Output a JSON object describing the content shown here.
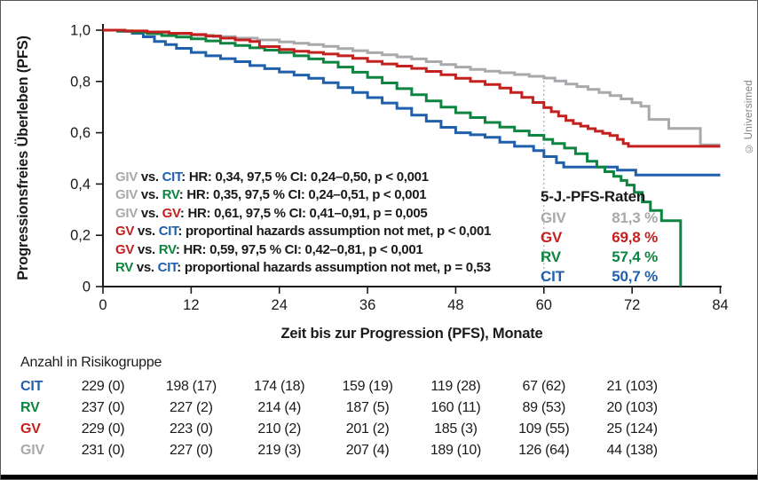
{
  "watermark": "© Universimed",
  "chart_data": {
    "type": "line",
    "subtype": "kaplan-meier-step",
    "xlabel": "Zeit bis zur Progression (PFS), Monate",
    "ylabel": "Progressionsfreies Überleben (PFS)",
    "xlim": [
      0,
      84
    ],
    "ylim": [
      0,
      1.0
    ],
    "grid": false,
    "x_ticks": [
      0,
      12,
      24,
      36,
      48,
      60,
      72,
      84
    ],
    "y_ticks": [
      {
        "v": 1.0,
        "label": "1,0"
      },
      {
        "v": 0.8,
        "label": "0,8"
      },
      {
        "v": 0.6,
        "label": "0,6"
      },
      {
        "v": 0.4,
        "label": "0,4"
      },
      {
        "v": 0.2,
        "label": "0,2"
      },
      {
        "v": 0.0,
        "label": "0"
      }
    ],
    "ref_line_x": 60,
    "colors": {
      "GIV": "#a7a9ac",
      "GV": "#c4201f",
      "RV": "#0d8540",
      "CIT": "#1f5fac",
      "text": "#1a1a1a",
      "axis": "#1a1a1a",
      "ref_line": "#999999"
    },
    "series": [
      {
        "name": "GIV",
        "points": [
          [
            0,
            1
          ],
          [
            3,
            0.995
          ],
          [
            6,
            0.99
          ],
          [
            9,
            0.985
          ],
          [
            12,
            0.98
          ],
          [
            15,
            0.975
          ],
          [
            18,
            0.969
          ],
          [
            21,
            0.962
          ],
          [
            24,
            0.954
          ],
          [
            26,
            0.949
          ],
          [
            28,
            0.944
          ],
          [
            30,
            0.937
          ],
          [
            32,
            0.928
          ],
          [
            34,
            0.92
          ],
          [
            36,
            0.912
          ],
          [
            38,
            0.904
          ],
          [
            40,
            0.896
          ],
          [
            42,
            0.888
          ],
          [
            44,
            0.877
          ],
          [
            46,
            0.866
          ],
          [
            48,
            0.856
          ],
          [
            50,
            0.847
          ],
          [
            52,
            0.84
          ],
          [
            54,
            0.834
          ],
          [
            56,
            0.827
          ],
          [
            58,
            0.82
          ],
          [
            60,
            0.813
          ],
          [
            61.5,
            0.802
          ],
          [
            63,
            0.79
          ],
          [
            64.5,
            0.78
          ],
          [
            66,
            0.769
          ],
          [
            67.5,
            0.757
          ],
          [
            69,
            0.745
          ],
          [
            70.5,
            0.732
          ],
          [
            72,
            0.717
          ],
          [
            73.2,
            0.703
          ],
          [
            74.3,
            0.652
          ],
          [
            77,
            0.617
          ],
          [
            81.3,
            0.553
          ],
          [
            84,
            0.553
          ]
        ]
      },
      {
        "name": "CIT",
        "points": [
          [
            0,
            1
          ],
          [
            2,
            0.996
          ],
          [
            4,
            0.988
          ],
          [
            5.5,
            0.974
          ],
          [
            7,
            0.956
          ],
          [
            8.5,
            0.944
          ],
          [
            10,
            0.929
          ],
          [
            12,
            0.913
          ],
          [
            14,
            0.9
          ],
          [
            16,
            0.889
          ],
          [
            18,
            0.877
          ],
          [
            20,
            0.862
          ],
          [
            22,
            0.85
          ],
          [
            24,
            0.837
          ],
          [
            26,
            0.825
          ],
          [
            28,
            0.812
          ],
          [
            30,
            0.795
          ],
          [
            32,
            0.776
          ],
          [
            34,
            0.757
          ],
          [
            36,
            0.737
          ],
          [
            38,
            0.716
          ],
          [
            40,
            0.695
          ],
          [
            42,
            0.669
          ],
          [
            44,
            0.645
          ],
          [
            46,
            0.621
          ],
          [
            48,
            0.6
          ],
          [
            50,
            0.592
          ],
          [
            52,
            0.582
          ],
          [
            54,
            0.563
          ],
          [
            56,
            0.547
          ],
          [
            58.6,
            0.53
          ],
          [
            60,
            0.507
          ],
          [
            61.7,
            0.483
          ],
          [
            62.7,
            0.466
          ],
          [
            70,
            0.454
          ],
          [
            72.5,
            0.435
          ],
          [
            84,
            0.435
          ]
        ]
      },
      {
        "name": "RV",
        "points": [
          [
            0,
            1
          ],
          [
            2,
            0.997
          ],
          [
            4,
            0.992
          ],
          [
            6,
            0.986
          ],
          [
            8,
            0.979
          ],
          [
            10,
            0.973
          ],
          [
            12,
            0.966
          ],
          [
            14,
            0.958
          ],
          [
            16,
            0.949
          ],
          [
            18,
            0.94
          ],
          [
            20,
            0.931
          ],
          [
            22,
            0.922
          ],
          [
            24,
            0.913
          ],
          [
            26,
            0.9
          ],
          [
            28,
            0.888
          ],
          [
            30,
            0.875
          ],
          [
            32,
            0.856
          ],
          [
            34,
            0.836
          ],
          [
            36,
            0.816
          ],
          [
            38,
            0.794
          ],
          [
            40,
            0.772
          ],
          [
            42,
            0.748
          ],
          [
            44,
            0.724
          ],
          [
            46,
            0.7
          ],
          [
            48,
            0.678
          ],
          [
            50,
            0.659
          ],
          [
            52,
            0.64
          ],
          [
            54,
            0.622
          ],
          [
            56,
            0.607
          ],
          [
            58,
            0.59
          ],
          [
            60,
            0.574
          ],
          [
            61.2,
            0.558
          ],
          [
            62.8,
            0.54
          ],
          [
            64.3,
            0.518
          ],
          [
            65.9,
            0.489
          ],
          [
            67.2,
            0.466
          ],
          [
            68.3,
            0.448
          ],
          [
            69.5,
            0.43
          ],
          [
            70.5,
            0.414
          ],
          [
            71.3,
            0.396
          ],
          [
            72.3,
            0.367
          ],
          [
            73.4,
            0.33
          ],
          [
            74.5,
            0.297
          ],
          [
            76,
            0.257
          ],
          [
            78.6,
            0
          ]
        ]
      },
      {
        "name": "GV",
        "points": [
          [
            0,
            1
          ],
          [
            3,
            0.997
          ],
          [
            6,
            0.993
          ],
          [
            9,
            0.988
          ],
          [
            12,
            0.983
          ],
          [
            14,
            0.977
          ],
          [
            16,
            0.969
          ],
          [
            18,
            0.962
          ],
          [
            20,
            0.956
          ],
          [
            21.3,
            0.936
          ],
          [
            24,
            0.925
          ],
          [
            26,
            0.918
          ],
          [
            28,
            0.913
          ],
          [
            30,
            0.907
          ],
          [
            32,
            0.9
          ],
          [
            34,
            0.89
          ],
          [
            36,
            0.878
          ],
          [
            38,
            0.868
          ],
          [
            40,
            0.86
          ],
          [
            42,
            0.851
          ],
          [
            44,
            0.839
          ],
          [
            46,
            0.826
          ],
          [
            48,
            0.812
          ],
          [
            50,
            0.8
          ],
          [
            52,
            0.788
          ],
          [
            54,
            0.774
          ],
          [
            55.5,
            0.757
          ],
          [
            57,
            0.738
          ],
          [
            58.5,
            0.718
          ],
          [
            60,
            0.698
          ],
          [
            61,
            0.682
          ],
          [
            62,
            0.665
          ],
          [
            63,
            0.648
          ],
          [
            64,
            0.636
          ],
          [
            65,
            0.626
          ],
          [
            66,
            0.616
          ],
          [
            67,
            0.606
          ],
          [
            68,
            0.598
          ],
          [
            69,
            0.589
          ],
          [
            70,
            0.574
          ],
          [
            70.8,
            0.558
          ],
          [
            71.5,
            0.547
          ],
          [
            84,
            0.547
          ]
        ]
      }
    ],
    "annotations": [
      [
        [
          "GIV",
          "GIV"
        ],
        [
          " vs. ",
          "text"
        ],
        [
          "CIT",
          "CIT"
        ],
        [
          ": HR: 0,34, 97,5 % CI: 0,24–0,50, p < 0,001",
          "text"
        ]
      ],
      [
        [
          "GIV",
          "GIV"
        ],
        [
          " vs. ",
          "text"
        ],
        [
          "RV",
          "RV"
        ],
        [
          ": HR: 0,35, 97,5 % CI: 0,24–0,51, p < 0,001",
          "text"
        ]
      ],
      [
        [
          "GIV",
          "GIV"
        ],
        [
          " vs. ",
          "text"
        ],
        [
          "GV",
          "GV"
        ],
        [
          ": HR: 0,61, 97,5 % CI: 0,41–0,91, p = 0,005",
          "text"
        ]
      ],
      [
        [
          "GV",
          "GV"
        ],
        [
          " vs. ",
          "text"
        ],
        [
          "CIT",
          "CIT"
        ],
        [
          ": proportinal hazards assumption not met, p < 0,001",
          "text"
        ]
      ],
      [
        [
          "GV",
          "GV"
        ],
        [
          " vs. ",
          "text"
        ],
        [
          "RV",
          "RV"
        ],
        [
          ": HR: 0,59, 97,5 % CI: 0,42–0,81, p < 0,001",
          "text"
        ]
      ],
      [
        [
          "RV",
          "RV"
        ],
        [
          " vs. ",
          "text"
        ],
        [
          "CIT",
          "CIT"
        ],
        [
          ": proportional hazards assumption not met, p = 0,53",
          "text"
        ]
      ]
    ],
    "legend": {
      "title": "5-J.-PFS-Raten",
      "position": "inside-right",
      "rows": [
        {
          "series": "GIV",
          "value": "81,3 %"
        },
        {
          "series": "GV",
          "value": "69,8 %"
        },
        {
          "series": "RV",
          "value": "57,4 %"
        },
        {
          "series": "CIT",
          "value": "50,7 %"
        }
      ]
    },
    "risk_table": {
      "title": "Anzahl in Risikogruppe",
      "columns_months": [
        0,
        12,
        24,
        36,
        48,
        60,
        72
      ],
      "rows": [
        {
          "series": "CIT",
          "values": [
            "229 (0)",
            "198 (17)",
            "174 (18)",
            "159 (19)",
            "119 (28)",
            "67 (62)",
            "21 (103)"
          ]
        },
        {
          "series": "RV",
          "values": [
            "237 (0)",
            "227 (2)",
            "214 (4)",
            "187 (5)",
            "160 (11)",
            "89 (53)",
            "20 (103)"
          ]
        },
        {
          "series": "GV",
          "values": [
            "229 (0)",
            "223 (0)",
            "210 (2)",
            "201 (2)",
            "185 (3)",
            "109 (55)",
            "25 (124)"
          ]
        },
        {
          "series": "GIV",
          "values": [
            "231 (0)",
            "227 (0)",
            "219 (3)",
            "207 (4)",
            "189 (10)",
            "126 (64)",
            "44 (138)"
          ]
        }
      ]
    }
  }
}
